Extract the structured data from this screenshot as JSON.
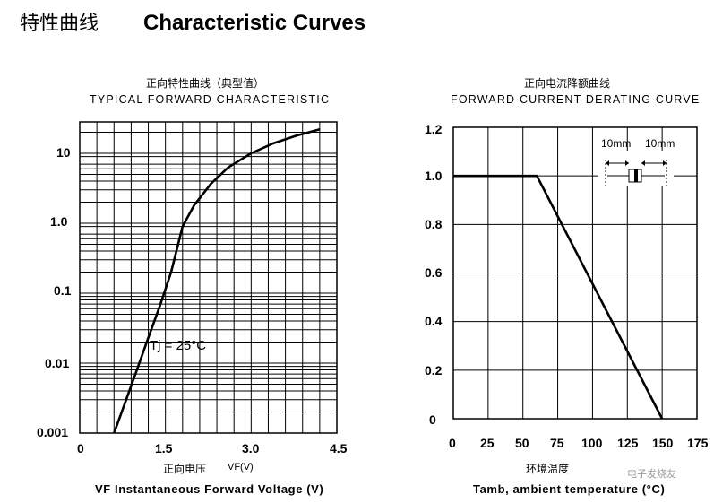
{
  "header": {
    "title_cn": "特性曲线",
    "title_en": "Characteristic  Curves"
  },
  "watermark": "电子发烧友",
  "chart_data": [
    {
      "type": "line",
      "title_cn": "正向特性曲线（典型值）",
      "title": "TYPICAL FORWARD CHARACTERISTIC",
      "xlabel_cn": "正向电压",
      "xlabel_unit": "VF(V)",
      "xlabel": "VF  Instantaneous  Forward  Voltage  (V)",
      "ylabel": "",
      "xlim": [
        0,
        4.5
      ],
      "ylim": [
        0.001,
        30
      ],
      "yscale": "log",
      "grid": true,
      "x_ticks": [
        "0",
        "1.5",
        "3.0",
        "4.5"
      ],
      "y_ticks": [
        "0.001",
        "0.01",
        "0.1",
        "1.0",
        "10"
      ],
      "annotation": "Tj = 25°C",
      "series": [
        {
          "x": [
            0.6,
            0.8,
            1.0,
            1.2,
            1.4,
            1.6,
            1.8,
            2.0,
            2.3,
            2.6,
            3.0,
            3.4,
            3.8,
            4.2
          ],
          "y": [
            0.001,
            0.0028,
            0.008,
            0.023,
            0.065,
            0.2,
            0.9,
            1.8,
            3.7,
            6.3,
            10.0,
            14.0,
            18.0,
            22.0
          ]
        }
      ]
    },
    {
      "type": "line",
      "title_cn": "正向电流降额曲线",
      "title": "FORWARD  CURRENT  DERATING  CURVE",
      "xlabel_cn": "环境温度",
      "xlabel": "Tamb,  ambient  temperature  (°C)",
      "ylabel": "",
      "xlim": [
        0,
        175
      ],
      "ylim": [
        0,
        1.2
      ],
      "grid": true,
      "x_ticks": [
        "0",
        "25",
        "50",
        "75",
        "100",
        "125",
        "150",
        "175"
      ],
      "y_ticks": [
        "0",
        "0.2",
        "0.4",
        "0.6",
        "0.8",
        "1.0",
        "1.2"
      ],
      "inset_labels": [
        "10mm",
        "10mm"
      ],
      "series": [
        {
          "x": [
            0,
            60,
            150
          ],
          "y": [
            1.0,
            1.0,
            0
          ]
        }
      ]
    }
  ]
}
